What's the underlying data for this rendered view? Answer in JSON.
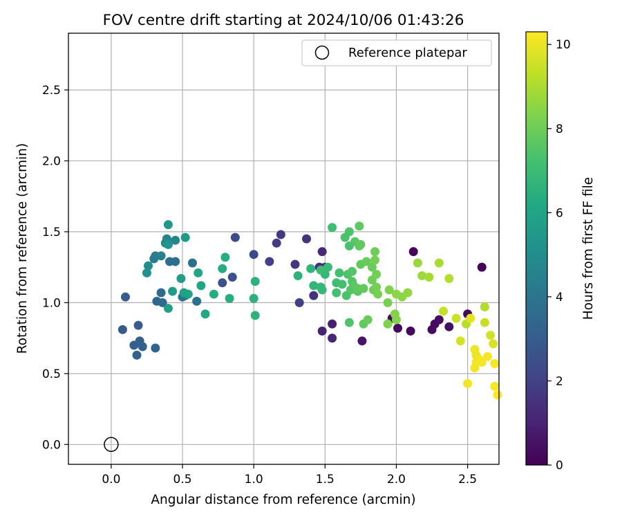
{
  "chart_data": {
    "type": "scatter",
    "title": "FOV centre drift starting at 2024/10/06 01:43:26",
    "xlabel": "Angular distance from reference (arcmin)",
    "ylabel": "Rotation from reference (arcmin)",
    "xlim": [
      -0.3,
      2.72
    ],
    "ylim": [
      -0.14,
      2.9
    ],
    "xticks": [
      0.0,
      0.5,
      1.0,
      1.5,
      2.0,
      2.5
    ],
    "yticks": [
      0.0,
      0.5,
      1.0,
      1.5,
      2.0,
      2.5
    ],
    "grid": true,
    "legend": {
      "position": "top-right",
      "entries": [
        "Reference platepar"
      ]
    },
    "colorbar": {
      "label": "Hours from first FF file",
      "range": [
        0,
        10.3
      ],
      "ticks": [
        0,
        2,
        4,
        6,
        8,
        10
      ],
      "colormap": "viridis"
    },
    "reference_point": {
      "x": 0.0,
      "y": 0.0
    },
    "series": [
      {
        "points": [
          [
            2.6,
            1.25,
            0.05
          ],
          [
            2.12,
            1.36,
            0.15
          ],
          [
            2.01,
            0.82,
            0.3
          ],
          [
            2.1,
            0.8,
            0.25
          ],
          [
            1.97,
            0.89,
            0.2
          ],
          [
            2.25,
            0.81,
            0.3
          ],
          [
            2.27,
            0.85,
            0.35
          ],
          [
            2.3,
            0.88,
            0.4
          ],
          [
            2.37,
            0.83,
            0.45
          ],
          [
            2.5,
            0.92,
            0.2
          ],
          [
            1.76,
            0.73,
            0.6
          ],
          [
            1.55,
            0.85,
            0.9
          ],
          [
            1.48,
            0.8,
            1.0
          ],
          [
            1.55,
            0.75,
            1.1
          ],
          [
            1.48,
            1.36,
            1.2
          ],
          [
            1.46,
            1.25,
            1.3
          ],
          [
            1.5,
            1.25,
            1.4
          ],
          [
            1.42,
            1.05,
            1.5
          ],
          [
            1.37,
            1.45,
            1.5
          ],
          [
            1.29,
            1.27,
            1.6
          ],
          [
            1.19,
            1.48,
            1.7
          ],
          [
            1.16,
            1.42,
            1.8
          ],
          [
            1.11,
            1.29,
            1.9
          ],
          [
            1.32,
            1.0,
            2.0
          ],
          [
            1.0,
            1.34,
            2.2
          ],
          [
            0.87,
            1.46,
            2.4
          ],
          [
            0.85,
            1.18,
            2.5
          ],
          [
            0.78,
            1.14,
            2.6
          ],
          [
            0.08,
            0.81,
            2.9
          ],
          [
            0.1,
            1.04,
            3.0
          ],
          [
            0.19,
            0.84,
            3.0
          ],
          [
            0.2,
            0.73,
            3.1
          ],
          [
            0.16,
            0.7,
            3.1
          ],
          [
            0.18,
            0.63,
            3.2
          ],
          [
            0.22,
            0.69,
            3.2
          ],
          [
            0.31,
            0.68,
            3.3
          ],
          [
            0.32,
            1.01,
            3.4
          ],
          [
            0.36,
            1.0,
            3.5
          ],
          [
            0.35,
            1.07,
            3.6
          ],
          [
            0.45,
            1.29,
            3.7
          ],
          [
            0.41,
            1.29,
            3.8
          ],
          [
            0.57,
            1.28,
            3.8
          ],
          [
            0.6,
            1.01,
            3.8
          ],
          [
            0.5,
            1.04,
            3.9
          ],
          [
            0.52,
            1.05,
            4.0
          ],
          [
            0.3,
            1.31,
            4.2
          ],
          [
            0.31,
            1.33,
            4.3
          ],
          [
            0.35,
            1.33,
            4.5
          ],
          [
            0.39,
            1.45,
            4.6
          ],
          [
            0.45,
            1.44,
            4.7
          ],
          [
            0.38,
            1.42,
            4.8
          ],
          [
            0.26,
            1.26,
            5.0
          ],
          [
            0.25,
            1.21,
            5.2
          ],
          [
            0.4,
            1.41,
            5.3
          ],
          [
            0.4,
            1.55,
            5.4
          ],
          [
            0.52,
            1.46,
            5.5
          ],
          [
            0.43,
            1.08,
            5.6
          ],
          [
            0.49,
            1.17,
            5.7
          ],
          [
            0.4,
            0.96,
            5.8
          ],
          [
            0.51,
            1.07,
            5.8
          ],
          [
            0.54,
            1.06,
            5.9
          ],
          [
            0.63,
            1.12,
            6.0
          ],
          [
            0.61,
            1.21,
            6.1
          ],
          [
            0.66,
            0.92,
            6.2
          ],
          [
            0.72,
            1.06,
            6.3
          ],
          [
            0.78,
            1.24,
            6.3
          ],
          [
            0.8,
            1.32,
            6.4
          ],
          [
            0.83,
            1.03,
            6.4
          ],
          [
            1.0,
            1.03,
            6.5
          ],
          [
            1.01,
            0.91,
            6.6
          ],
          [
            1.01,
            1.15,
            6.6
          ],
          [
            1.31,
            1.19,
            6.6
          ],
          [
            1.4,
            1.24,
            6.7
          ],
          [
            1.42,
            1.12,
            6.7
          ],
          [
            1.47,
            1.11,
            6.8
          ],
          [
            1.48,
            1.09,
            6.8
          ],
          [
            1.5,
            1.2,
            6.8
          ],
          [
            1.52,
            1.25,
            6.9
          ],
          [
            1.47,
            1.23,
            7.0
          ],
          [
            1.55,
            1.53,
            7.1
          ],
          [
            1.58,
            1.14,
            7.1
          ],
          [
            1.58,
            1.07,
            7.2
          ],
          [
            1.6,
            1.21,
            7.2
          ],
          [
            1.62,
            1.13,
            7.2
          ],
          [
            1.64,
            1.46,
            7.3
          ],
          [
            1.65,
            1.05,
            7.3
          ],
          [
            1.67,
            1.4,
            7.3
          ],
          [
            1.66,
            1.2,
            7.4
          ],
          [
            1.67,
            0.86,
            7.4
          ],
          [
            1.67,
            1.5,
            7.4
          ],
          [
            1.68,
            1.09,
            7.5
          ],
          [
            1.69,
            1.22,
            7.5
          ],
          [
            1.69,
            1.15,
            7.5
          ],
          [
            1.7,
            1.12,
            7.6
          ],
          [
            1.71,
            1.43,
            7.6
          ],
          [
            1.73,
            1.08,
            7.6
          ],
          [
            1.73,
            1.1,
            7.7
          ],
          [
            1.74,
            1.54,
            7.7
          ],
          [
            1.74,
            1.4,
            7.7
          ],
          [
            1.75,
            1.41,
            7.8
          ],
          [
            1.75,
            1.27,
            7.8
          ],
          [
            1.77,
            1.1,
            7.8
          ],
          [
            1.77,
            0.85,
            7.8
          ],
          [
            1.79,
            1.29,
            7.9
          ],
          [
            1.8,
            0.88,
            7.9
          ],
          [
            1.83,
            1.25,
            7.9
          ],
          [
            1.83,
            1.16,
            8.0
          ],
          [
            1.84,
            1.09,
            8.0
          ],
          [
            1.85,
            1.36,
            8.0
          ],
          [
            1.85,
            1.3,
            8.1
          ],
          [
            1.86,
            1.2,
            8.1
          ],
          [
            1.86,
            1.11,
            8.1
          ],
          [
            1.87,
            1.06,
            8.2
          ],
          [
            1.94,
            1.0,
            8.2
          ],
          [
            1.94,
            0.85,
            8.3
          ],
          [
            1.95,
            1.09,
            8.3
          ],
          [
            1.99,
            0.92,
            8.4
          ],
          [
            2.0,
            0.88,
            8.4
          ],
          [
            2.0,
            1.06,
            8.5
          ],
          [
            2.04,
            1.04,
            8.5
          ],
          [
            2.08,
            1.07,
            8.6
          ],
          [
            2.15,
            1.28,
            8.7
          ],
          [
            2.18,
            1.19,
            8.8
          ],
          [
            2.23,
            1.18,
            8.9
          ],
          [
            2.3,
            1.28,
            9.0
          ],
          [
            2.37,
            1.17,
            9.1
          ],
          [
            2.33,
            0.94,
            9.4
          ],
          [
            2.42,
            0.89,
            9.5
          ],
          [
            2.45,
            0.73,
            9.6
          ],
          [
            2.49,
            0.85,
            9.2
          ],
          [
            2.52,
            0.89,
            9.9
          ],
          [
            2.55,
            0.67,
            10.0
          ],
          [
            2.56,
            0.63,
            10.0
          ],
          [
            2.56,
            0.58,
            10.1
          ],
          [
            2.55,
            0.54,
            10.1
          ],
          [
            2.5,
            0.43,
            10.1
          ],
          [
            2.58,
            0.6,
            10.1
          ],
          [
            2.6,
            0.58,
            10.2
          ],
          [
            2.62,
            0.97,
            9.1
          ],
          [
            2.62,
            0.86,
            9.4
          ],
          [
            2.64,
            0.62,
            10.2
          ],
          [
            2.66,
            0.77,
            9.6
          ],
          [
            2.68,
            0.71,
            9.7
          ],
          [
            2.69,
            0.57,
            10.2
          ],
          [
            2.69,
            0.41,
            10.2
          ],
          [
            2.71,
            0.35,
            10.3
          ]
        ]
      }
    ]
  }
}
